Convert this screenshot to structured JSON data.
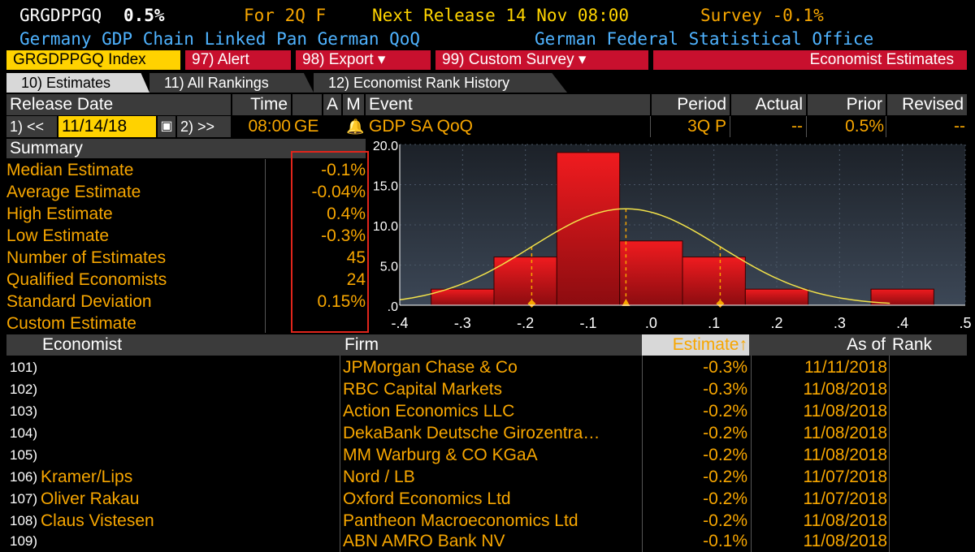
{
  "header": {
    "ticker": "GRGDPPGQ",
    "value": "0.5%",
    "for_period": "For 2Q F",
    "next_release": "Next Release 14 Nov 08:00",
    "survey": "Survey -0.1%",
    "description": "Germany GDP Chain Linked Pan German QoQ",
    "source": "German Federal Statistical Office"
  },
  "toolbar": {
    "index_label": "GRGDPPGQ Index",
    "alert_label": "97) Alert",
    "export_label": "98) Export ▾",
    "custom_survey_label": "99) Custom Survey ▾",
    "economist_estimates_label": "Economist Estimates"
  },
  "tabs": [
    {
      "label": "10) Estimates"
    },
    {
      "label": "11) All Rankings"
    },
    {
      "label": "12) Economist Rank History"
    }
  ],
  "release": {
    "headers": {
      "release_date": "Release Date",
      "time": "Time",
      "a": "A",
      "m": "M",
      "event": "Event",
      "period": "Period",
      "actual": "Actual",
      "prior": "Prior",
      "revised": "Revised"
    },
    "prev_button": "1) <<",
    "date": "11/14/18",
    "next_button": "2) >>",
    "time": "08:00",
    "tz": "GE",
    "event": "GDP SA QoQ",
    "period": "3Q P",
    "actual": "--",
    "prior": "0.5%",
    "revised": "--"
  },
  "summary": {
    "title": "Summary",
    "rows": [
      {
        "label": "Median Estimate",
        "value": "-0.1%"
      },
      {
        "label": "Average Estimate",
        "value": "-0.04%"
      },
      {
        "label": "High Estimate",
        "value": "0.4%"
      },
      {
        "label": "Low Estimate",
        "value": "-0.3%"
      },
      {
        "label": "Number of Estimates",
        "value": "45"
      },
      {
        "label": "Qualified Economists",
        "value": "24"
      },
      {
        "label": "Standard Deviation",
        "value": "0.15%"
      },
      {
        "label": "Custom Estimate",
        "value": ""
      }
    ]
  },
  "chart_data": {
    "type": "bar",
    "x_ticks": [
      "-.4",
      "-.3",
      "-.2",
      "-.1",
      ".0",
      ".1",
      ".2",
      ".3",
      ".4",
      ".5"
    ],
    "x_tick_values": [
      -0.4,
      -0.3,
      -0.2,
      -0.1,
      0.0,
      0.1,
      0.2,
      0.3,
      0.4,
      0.5
    ],
    "y_ticks": [
      "20.0",
      "15.0",
      "10.0",
      "5.0",
      ".0"
    ],
    "y_tick_values": [
      20,
      15,
      10,
      5,
      0
    ],
    "xlim": [
      -0.4,
      0.5
    ],
    "ylim": [
      0,
      20
    ],
    "bins": [
      {
        "from": -0.35,
        "to": -0.25,
        "value": 2
      },
      {
        "from": -0.25,
        "to": -0.15,
        "value": 6
      },
      {
        "from": -0.15,
        "to": -0.05,
        "value": 19
      },
      {
        "from": -0.05,
        "to": 0.05,
        "value": 8
      },
      {
        "from": 0.05,
        "to": 0.15,
        "value": 6
      },
      {
        "from": 0.15,
        "to": 0.25,
        "value": 2
      },
      {
        "from": 0.35,
        "to": 0.45,
        "value": 2
      }
    ],
    "normal_curve": {
      "mean": -0.04,
      "std": 0.15,
      "peak": 12
    },
    "markers": [
      {
        "x": -0.19,
        "shape": "diamond"
      },
      {
        "x": -0.04,
        "shape": "triangle"
      },
      {
        "x": 0.11,
        "shape": "diamond"
      }
    ],
    "colors": {
      "bar": "#e3141b",
      "curve": "#f2e24a",
      "marker": "#f7a600",
      "bg": "#2a3340"
    }
  },
  "estimates_table": {
    "headers": {
      "economist": "Economist",
      "firm": "Firm",
      "estimate": "Estimate↑",
      "as_of": "As of",
      "rank": "Rank"
    },
    "rows": [
      {
        "num": "101)",
        "economist": "",
        "firm": "JPMorgan Chase & Co",
        "estimate": "-0.3%",
        "as_of": "11/11/2018"
      },
      {
        "num": "102)",
        "economist": "",
        "firm": "RBC Capital Markets",
        "estimate": "-0.3%",
        "as_of": "11/08/2018"
      },
      {
        "num": "103)",
        "economist": "",
        "firm": "Action Economics LLC",
        "estimate": "-0.2%",
        "as_of": "11/08/2018"
      },
      {
        "num": "104)",
        "economist": "",
        "firm": "DekaBank Deutsche Girozentra…",
        "estimate": "-0.2%",
        "as_of": "11/08/2018"
      },
      {
        "num": "105)",
        "economist": "",
        "firm": "MM Warburg & CO KGaA",
        "estimate": "-0.2%",
        "as_of": "11/08/2018"
      },
      {
        "num": "106)",
        "economist": "Kramer/Lips",
        "firm": "Nord / LB",
        "estimate": "-0.2%",
        "as_of": "11/07/2018"
      },
      {
        "num": "107)",
        "economist": "Oliver Rakau",
        "firm": "Oxford Economics Ltd",
        "estimate": "-0.2%",
        "as_of": "11/07/2018"
      },
      {
        "num": "108)",
        "economist": "Claus Vistesen",
        "firm": "Pantheon Macroeconomics Ltd",
        "estimate": "-0.2%",
        "as_of": "11/08/2018"
      },
      {
        "num": "109)",
        "economist": "",
        "firm": "ABN AMRO Bank NV",
        "estimate": "-0.1%",
        "as_of": "11/08/2018"
      }
    ]
  }
}
